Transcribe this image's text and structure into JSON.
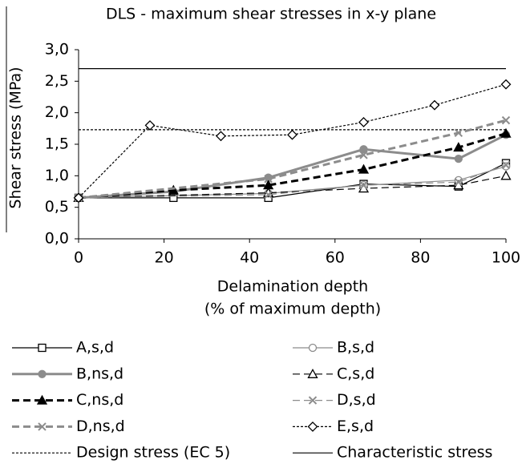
{
  "chart_data": {
    "type": "line",
    "title": "DLS - maximum shear stresses in x-y plane",
    "xlabel": [
      "Delamination depth",
      "(% of maximum depth)"
    ],
    "ylabel": "Shear stress (MPa)",
    "xlim": [
      0,
      100
    ],
    "xticks": [
      0,
      20,
      40,
      60,
      80,
      100
    ],
    "ylim": [
      0,
      3
    ],
    "yticks": [
      {
        "value": 0,
        "label": "0,0"
      },
      {
        "value": 0.5,
        "label": "0,5"
      },
      {
        "value": 1,
        "label": "1,0"
      },
      {
        "value": 1.5,
        "label": "1,5"
      },
      {
        "value": 2,
        "label": "2,0"
      },
      {
        "value": 2.5,
        "label": "2,5"
      },
      {
        "value": 3,
        "label": "3,0"
      }
    ],
    "series": [
      {
        "name": "A,s,d",
        "color": "#000000",
        "width": 1.2,
        "dash": "solid",
        "marker": "square",
        "marker_fill": false,
        "x": [
          0,
          22.2,
          44.4,
          66.7,
          88.9,
          100
        ],
        "values": [
          0.65,
          0.65,
          0.65,
          0.87,
          0.83,
          1.2
        ]
      },
      {
        "name": "B,s,d",
        "color": "#8c8c8c",
        "width": 1.2,
        "dash": "solid",
        "marker": "circle",
        "marker_fill": false,
        "x": [
          0,
          44.4,
          66.7,
          88.9,
          100
        ],
        "values": [
          0.65,
          0.72,
          0.85,
          0.93,
          1.15
        ]
      },
      {
        "name": "B,ns,d",
        "color": "#8c8c8c",
        "width": 3,
        "dash": "solid",
        "marker": "circle",
        "marker_fill": true,
        "x": [
          0,
          22.2,
          44.4,
          66.7,
          88.9,
          100
        ],
        "values": [
          0.65,
          0.75,
          0.97,
          1.42,
          1.27,
          1.65
        ]
      },
      {
        "name": "C,s,d",
        "color": "#000000",
        "width": 1.2,
        "dash": "dashed",
        "marker": "triangle",
        "marker_fill": false,
        "x": [
          0,
          44.4,
          66.7,
          88.9,
          100
        ],
        "values": [
          0.65,
          0.73,
          0.8,
          0.85,
          1.0
        ]
      },
      {
        "name": "C,ns,d",
        "color": "#000000",
        "width": 3,
        "dash": "dashed",
        "marker": "triangle",
        "marker_fill": true,
        "x": [
          0,
          22.2,
          44.4,
          66.7,
          88.9,
          100
        ],
        "values": [
          0.65,
          0.77,
          0.85,
          1.1,
          1.45,
          1.67
        ]
      },
      {
        "name": "D,s,d",
        "color": "#8c8c8c",
        "width": 1.2,
        "dash": "dashed",
        "marker": "x",
        "marker_fill": false,
        "x": [
          0,
          44.4,
          66.7,
          88.9,
          100
        ],
        "values": [
          0.65,
          0.7,
          0.85,
          0.9,
          1.17
        ]
      },
      {
        "name": "D,ns,d",
        "color": "#8c8c8c",
        "width": 3,
        "dash": "dashed",
        "marker": "x",
        "marker_fill": false,
        "x": [
          0,
          44.4,
          66.7,
          88.9,
          100
        ],
        "values": [
          0.65,
          0.95,
          1.33,
          1.68,
          1.88
        ]
      },
      {
        "name": "E,s,d",
        "color": "#000000",
        "width": 1.2,
        "dash": "dotted",
        "marker": "diamond",
        "marker_fill": false,
        "x": [
          0,
          16.7,
          33.3,
          50,
          66.7,
          83.3,
          100
        ],
        "values": [
          0.65,
          1.8,
          1.63,
          1.65,
          1.85,
          2.12,
          2.45
        ]
      }
    ],
    "hlines": [
      {
        "name": "Design stress (EC 5)",
        "value": 1.73,
        "color": "#000000",
        "dash": "dotted"
      },
      {
        "name": "Characteristic stress",
        "value": 2.7,
        "color": "#000000",
        "dash": "solid"
      }
    ]
  }
}
